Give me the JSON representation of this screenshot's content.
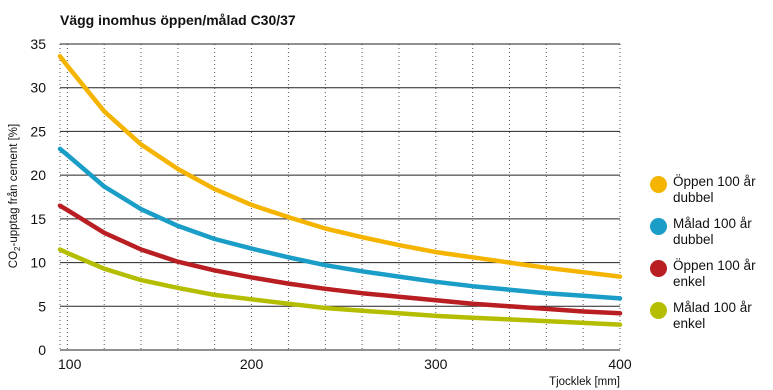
{
  "chart_data": {
    "type": "line",
    "title": "Vägg inomhus öppen/målad C30/37",
    "ylabel_main": "CO",
    "ylabel_sub": "2",
    "ylabel_rest": "-upptag från cement [%]",
    "xlabel": "Tjocklek [mm]",
    "xlim": [
      96,
      400
    ],
    "ylim": [
      0,
      35
    ],
    "xticks": [
      "100",
      "200",
      "300",
      "400"
    ],
    "yticks": [
      "0",
      "5",
      "10",
      "15",
      "20",
      "25",
      "30",
      "35"
    ],
    "grid": {
      "horizontal": "solid",
      "vertical": "dotted"
    },
    "legend_position": "right",
    "x": [
      96,
      100,
      120,
      140,
      160,
      180,
      200,
      220,
      240,
      260,
      280,
      300,
      320,
      340,
      360,
      380,
      400
    ],
    "series": [
      {
        "name_line1": "Öppen 100 år",
        "name_line2": "dubbel",
        "color": "#f5b400",
        "values": [
          33.6,
          32.5,
          27.3,
          23.5,
          20.7,
          18.4,
          16.6,
          15.2,
          13.9,
          12.9,
          12.0,
          11.2,
          10.6,
          10.0,
          9.4,
          8.9,
          8.4
        ]
      },
      {
        "name_line1": "Målad 100 år",
        "name_line2": "dubbel",
        "color": "#1a9dc7",
        "values": [
          23.0,
          22.3,
          18.7,
          16.1,
          14.2,
          12.7,
          11.6,
          10.6,
          9.7,
          9.0,
          8.4,
          7.8,
          7.3,
          6.9,
          6.5,
          6.2,
          5.9
        ]
      },
      {
        "name_line1": "Öppen 100 år",
        "name_line2": "enkel",
        "color": "#b81e22",
        "values": [
          16.5,
          16.0,
          13.4,
          11.5,
          10.1,
          9.1,
          8.3,
          7.6,
          7.0,
          6.5,
          6.1,
          5.7,
          5.3,
          5.0,
          4.7,
          4.4,
          4.2
        ]
      },
      {
        "name_line1": "Målad 100 år",
        "name_line2": "enkel",
        "color": "#b5bd00",
        "values": [
          11.5,
          11.1,
          9.3,
          8.0,
          7.1,
          6.3,
          5.8,
          5.3,
          4.8,
          4.5,
          4.2,
          3.9,
          3.7,
          3.5,
          3.3,
          3.1,
          2.9
        ]
      }
    ]
  }
}
